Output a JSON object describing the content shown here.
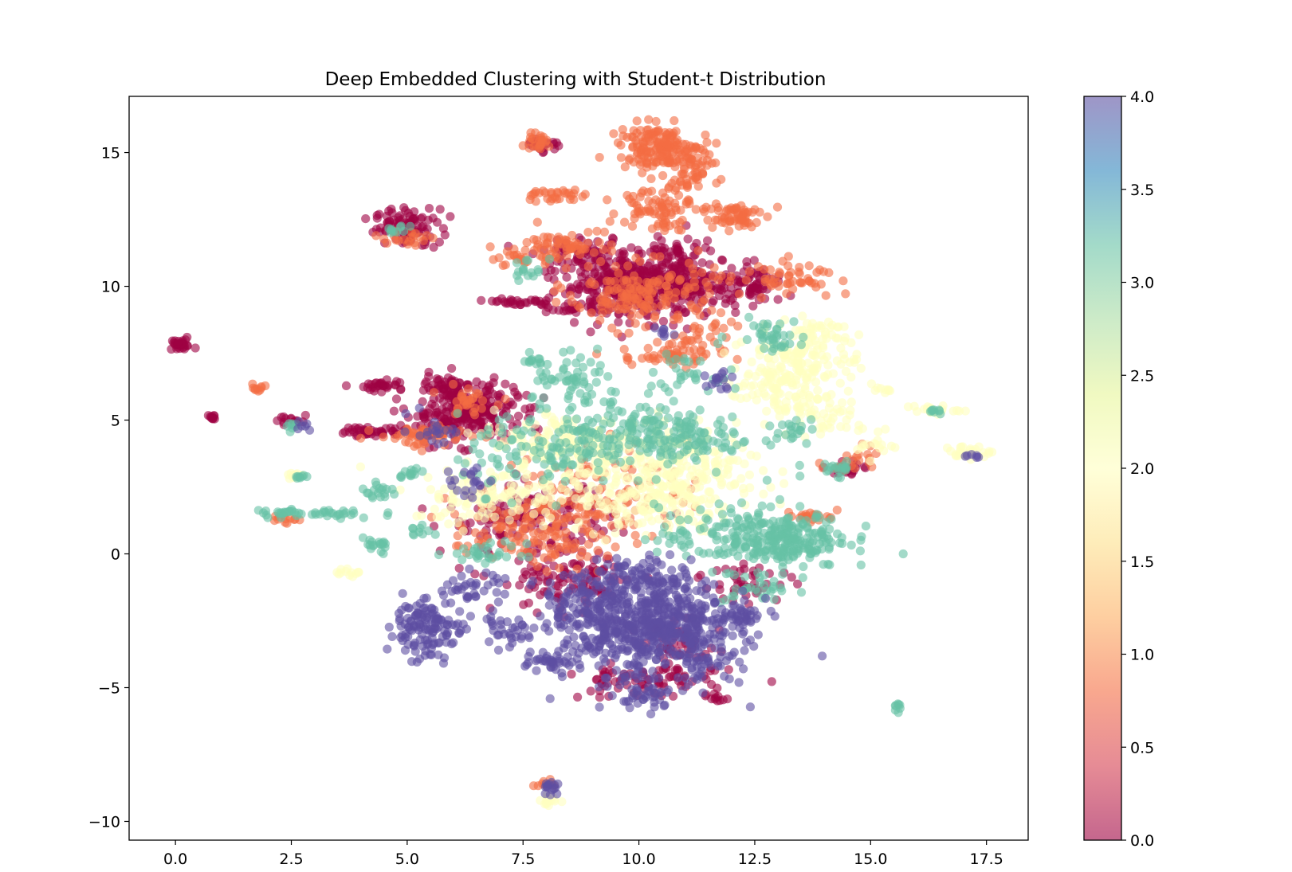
{
  "chart_data": {
    "type": "scatter",
    "title": "Deep Embedded Clustering with Student-t Distribution",
    "xlabel": "",
    "ylabel": "",
    "xlim": [
      -1.0,
      18.4
    ],
    "ylim": [
      -10.7,
      17.1
    ],
    "xticks": [
      0.0,
      2.5,
      5.0,
      7.5,
      10.0,
      12.5,
      15.0,
      17.5
    ],
    "xtick_labels": [
      "0.0",
      "2.5",
      "5.0",
      "7.5",
      "10.0",
      "12.5",
      "15.0",
      "17.5"
    ],
    "yticks": [
      -10,
      -5,
      0,
      5,
      10,
      15
    ],
    "ytick_labels": [
      "−10",
      "−5",
      "0",
      "5",
      "10",
      "15"
    ],
    "grid": false,
    "marker_alpha": 0.6,
    "colorbar": {
      "cmap": "Spectral",
      "range": [
        0.0,
        4.0
      ],
      "ticks": [
        0.0,
        0.5,
        1.0,
        1.5,
        2.0,
        2.5,
        3.0,
        3.5,
        4.0
      ],
      "tick_labels": [
        "0.0",
        "0.5",
        "1.0",
        "1.5",
        "2.0",
        "2.5",
        "3.0",
        "3.5",
        "4.0"
      ],
      "colors": [
        "#9e0142",
        "#d53e4f",
        "#f46d43",
        "#fdae61",
        "#fee08b",
        "#ffffbf",
        "#e6f598",
        "#abdda4",
        "#66c2a5",
        "#3288bd",
        "#5e4fa2"
      ]
    },
    "clusters": [
      {
        "label": 0,
        "color": "#9e0142",
        "centers": [
          [
            0.1,
            7.8,
            0.15,
            0.1,
            30
          ],
          [
            0.8,
            5.1,
            0.05,
            0.05,
            10
          ],
          [
            5.0,
            12.2,
            0.35,
            0.35,
            90
          ],
          [
            4.5,
            6.3,
            0.25,
            0.12,
            30
          ],
          [
            4.3,
            4.6,
            0.4,
            0.1,
            40
          ],
          [
            2.5,
            5.0,
            0.15,
            0.15,
            15
          ],
          [
            6.2,
            5.3,
            0.6,
            0.55,
            280
          ],
          [
            5.8,
            6.3,
            0.2,
            0.15,
            30
          ],
          [
            9.9,
            10.1,
            0.8,
            0.6,
            380
          ],
          [
            11.0,
            10.1,
            0.6,
            0.5,
            120
          ],
          [
            12.4,
            10.0,
            0.4,
            0.35,
            70
          ],
          [
            7.5,
            9.4,
            0.3,
            0.08,
            30
          ],
          [
            8.6,
            9.2,
            0.3,
            0.1,
            20
          ],
          [
            7.6,
            1.3,
            0.9,
            0.6,
            140
          ],
          [
            8.5,
            -1.0,
            0.8,
            0.6,
            110
          ],
          [
            10.0,
            -4.8,
            0.8,
            0.3,
            70
          ],
          [
            11.0,
            -3.6,
            0.5,
            0.5,
            50
          ],
          [
            11.6,
            -5.4,
            0.1,
            0.1,
            10
          ],
          [
            12.3,
            -1.0,
            0.5,
            0.4,
            40
          ],
          [
            14.6,
            3.2,
            0.2,
            0.15,
            20
          ],
          [
            10.9,
            11.5,
            0.3,
            0.3,
            30
          ],
          [
            7.9,
            15.3,
            0.2,
            0.15,
            20
          ],
          [
            8.7,
            11.2,
            0.5,
            0.25,
            40
          ]
        ]
      },
      {
        "label": 1,
        "color": "#f46d43",
        "centers": [
          [
            10.4,
            15.2,
            0.4,
            0.4,
            140
          ],
          [
            11.0,
            14.5,
            0.35,
            0.5,
            80
          ],
          [
            10.4,
            13.0,
            0.4,
            0.45,
            80
          ],
          [
            12.0,
            12.6,
            0.3,
            0.3,
            60
          ],
          [
            7.8,
            15.4,
            0.2,
            0.15,
            25
          ],
          [
            8.2,
            13.4,
            0.3,
            0.15,
            30
          ],
          [
            8.6,
            11.5,
            0.5,
            0.3,
            60
          ],
          [
            7.5,
            11.0,
            0.3,
            0.15,
            25
          ],
          [
            10.1,
            9.7,
            0.8,
            0.6,
            160
          ],
          [
            10.6,
            7.4,
            0.5,
            0.2,
            50
          ],
          [
            11.4,
            8.0,
            0.4,
            0.4,
            30
          ],
          [
            13.3,
            10.4,
            0.5,
            0.3,
            50
          ],
          [
            5.4,
            4.4,
            0.5,
            0.2,
            60
          ],
          [
            6.3,
            5.7,
            0.3,
            0.25,
            30
          ],
          [
            7.7,
            0.7,
            0.9,
            0.6,
            120
          ],
          [
            9.0,
            2.3,
            1.0,
            0.9,
            120
          ],
          [
            2.4,
            1.3,
            0.15,
            0.1,
            12
          ],
          [
            13.7,
            1.4,
            0.3,
            0.1,
            20
          ],
          [
            14.6,
            3.6,
            0.3,
            0.3,
            20
          ],
          [
            1.8,
            6.2,
            0.1,
            0.1,
            10
          ],
          [
            5.0,
            11.8,
            0.3,
            0.15,
            20
          ],
          [
            8.0,
            -8.6,
            0.1,
            0.1,
            8
          ]
        ]
      },
      {
        "label": 2,
        "color": "#ffffbf",
        "centers": [
          [
            13.6,
            7.4,
            0.6,
            0.6,
            140
          ],
          [
            12.9,
            6.3,
            0.5,
            0.4,
            70
          ],
          [
            13.8,
            5.2,
            0.5,
            0.4,
            60
          ],
          [
            9.7,
            2.9,
            1.2,
            1.0,
            260
          ],
          [
            8.4,
            4.2,
            0.8,
            0.6,
            120
          ],
          [
            6.7,
            2.2,
            0.8,
            0.5,
            100
          ],
          [
            11.0,
            3.1,
            0.8,
            0.8,
            100
          ],
          [
            10.7,
            1.6,
            0.6,
            0.5,
            60
          ],
          [
            16.3,
            5.4,
            0.3,
            0.1,
            20
          ],
          [
            17.1,
            3.8,
            0.25,
            0.12,
            25
          ],
          [
            14.8,
            4.2,
            0.35,
            0.35,
            20
          ],
          [
            3.8,
            -0.7,
            0.15,
            0.06,
            12
          ],
          [
            2.6,
            2.9,
            0.1,
            0.06,
            10
          ],
          [
            8.0,
            -9.2,
            0.12,
            0.15,
            15
          ],
          [
            15.3,
            6.1,
            0.1,
            0.08,
            8
          ],
          [
            13.9,
            8.4,
            0.3,
            0.2,
            20
          ]
        ]
      },
      {
        "label": 3,
        "color": "#66c2a5",
        "centers": [
          [
            12.4,
            0.6,
            1.0,
            0.6,
            220
          ],
          [
            13.5,
            0.6,
            0.5,
            0.35,
            80
          ],
          [
            9.8,
            4.6,
            0.9,
            0.6,
            150
          ],
          [
            11.3,
            4.3,
            0.6,
            0.4,
            60
          ],
          [
            7.9,
            3.7,
            0.9,
            0.7,
            100
          ],
          [
            8.7,
            6.3,
            0.5,
            0.5,
            60
          ],
          [
            7.7,
            7.2,
            0.15,
            0.1,
            12
          ],
          [
            4.4,
            2.3,
            0.2,
            0.15,
            18
          ],
          [
            4.3,
            0.3,
            0.2,
            0.15,
            18
          ],
          [
            3.0,
            1.5,
            0.7,
            0.1,
            45
          ],
          [
            5.0,
            3.0,
            0.15,
            0.1,
            12
          ],
          [
            12.8,
            8.2,
            0.4,
            0.3,
            40
          ],
          [
            13.4,
            4.7,
            0.3,
            0.25,
            20
          ],
          [
            10.8,
            6.7,
            0.4,
            0.3,
            30
          ],
          [
            7.6,
            10.6,
            0.2,
            0.2,
            15
          ],
          [
            6.8,
            0.0,
            0.4,
            0.2,
            30
          ],
          [
            12.6,
            -1.3,
            0.4,
            0.3,
            30
          ],
          [
            15.6,
            -5.7,
            0.05,
            0.1,
            8
          ],
          [
            14.2,
            3.2,
            0.3,
            0.15,
            20
          ],
          [
            5.2,
            0.8,
            0.15,
            0.1,
            10
          ],
          [
            2.7,
            2.9,
            0.1,
            0.05,
            8
          ],
          [
            2.5,
            4.8,
            0.1,
            0.1,
            8
          ],
          [
            16.4,
            5.3,
            0.1,
            0.06,
            8
          ],
          [
            4.8,
            12.1,
            0.15,
            0.1,
            10
          ]
        ]
      },
      {
        "label": 4,
        "color": "#5e4fa2",
        "centers": [
          [
            10.1,
            -3.0,
            0.9,
            0.9,
            380
          ],
          [
            9.2,
            -2.0,
            0.7,
            0.7,
            160
          ],
          [
            11.0,
            -2.5,
            0.7,
            0.6,
            140
          ],
          [
            10.2,
            -1.0,
            0.6,
            0.5,
            100
          ],
          [
            5.4,
            -3.0,
            0.4,
            0.5,
            90
          ],
          [
            5.2,
            -2.3,
            0.3,
            0.3,
            40
          ],
          [
            8.1,
            -4.1,
            0.3,
            0.15,
            35
          ],
          [
            7.1,
            -3.0,
            0.3,
            0.25,
            30
          ],
          [
            6.3,
            -1.4,
            0.4,
            0.4,
            40
          ],
          [
            12.3,
            -2.3,
            0.3,
            0.25,
            30
          ],
          [
            11.5,
            -4.2,
            0.35,
            0.3,
            30
          ],
          [
            10.1,
            -5.2,
            0.4,
            0.3,
            40
          ],
          [
            8.1,
            -8.8,
            0.12,
            0.2,
            15
          ],
          [
            11.8,
            6.4,
            0.2,
            0.3,
            15
          ],
          [
            10.6,
            8.3,
            0.15,
            0.15,
            8
          ],
          [
            6.3,
            2.7,
            0.3,
            0.3,
            20
          ],
          [
            17.3,
            3.7,
            0.1,
            0.05,
            6
          ],
          [
            2.7,
            4.8,
            0.1,
            0.1,
            6
          ],
          [
            5.6,
            4.6,
            0.3,
            0.3,
            20
          ]
        ]
      }
    ]
  }
}
